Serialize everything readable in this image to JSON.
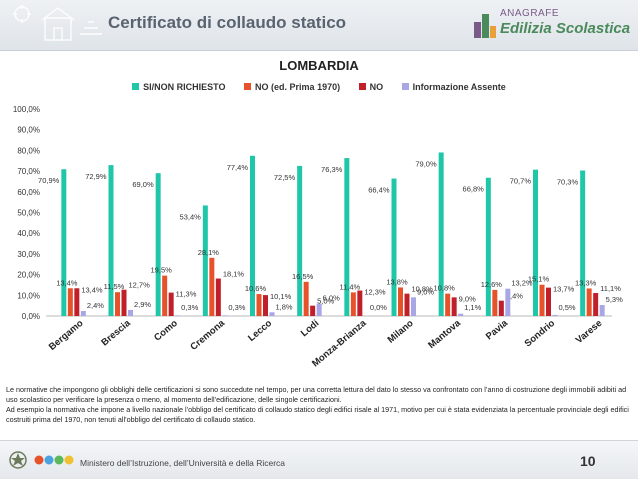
{
  "header": {
    "title": "Certificato di collaudo statico",
    "logo_top": "ANAGRAFE",
    "logo_bottom": "Edilizia Scolastica"
  },
  "chart_data": {
    "type": "bar",
    "title": "LOMBARDIA",
    "categories": [
      "Bergamo",
      "Brescia",
      "Como",
      "Cremona",
      "Lecco",
      "Lodi",
      "Monza-Brianza",
      "Milano",
      "Mantova",
      "Pavia",
      "Sondrio",
      "Varese"
    ],
    "series": [
      {
        "name": "SI/NON RICHIESTO",
        "color": "#1fc7a8",
        "values": [
          70.9,
          72.9,
          69.0,
          53.4,
          77.4,
          72.5,
          76.3,
          66.4,
          79.0,
          66.8,
          70.7,
          70.3
        ]
      },
      {
        "name": "NO (ed. Prima 1970)",
        "color": "#e8522a",
        "values": [
          13.4,
          11.5,
          19.5,
          28.1,
          10.6,
          16.5,
          11.4,
          13.8,
          10.8,
          12.6,
          15.1,
          13.3
        ]
      },
      {
        "name": "NO",
        "color": "#c0202a",
        "values": [
          13.4,
          12.7,
          11.3,
          18.1,
          10.1,
          5.0,
          12.3,
          10.8,
          9.0,
          7.4,
          13.7,
          11.1
        ]
      },
      {
        "name": "Informazione Assente",
        "color": "#a9a6e6",
        "values": [
          2.4,
          2.9,
          0.3,
          0.3,
          1.8,
          6.0,
          0.0,
          9.0,
          1.1,
          13.2,
          0.5,
          5.3
        ]
      }
    ],
    "data_labels": [
      [
        "70,9%",
        "13,4%",
        "13,4%",
        "2,4%"
      ],
      [
        "72,9%",
        "11,5%",
        "12,7%",
        "2,9%"
      ],
      [
        "69,0%",
        "19,5%",
        "11,3%",
        "0,3%"
      ],
      [
        "53,4%",
        "28,1%",
        "18,1%",
        "0,3%"
      ],
      [
        "77,4%",
        "10,6%",
        "10,1%",
        "1,8%"
      ],
      [
        "72,5%",
        "16,5%",
        "5,0%",
        "6,0%"
      ],
      [
        "76,3%",
        "11,4%",
        "12,3%",
        "0,0%"
      ],
      [
        "66,4%",
        "13,8%",
        "10,8%",
        "9,0%"
      ],
      [
        "79,0%",
        "10,8%",
        "9,0%",
        "1,1%"
      ],
      [
        "66,8%",
        "12,6%",
        "7,4%",
        "13,2%"
      ],
      [
        "70,7%",
        "15,1%",
        "13,7%",
        "0,5%"
      ],
      [
        "70,3%",
        "13,3%",
        "11,1%",
        "5,3%"
      ]
    ],
    "y_ticks": [
      "0,0%",
      "10,0%",
      "20,0%",
      "30,0%",
      "40,0%",
      "50,0%",
      "60,0%",
      "70,0%",
      "80,0%",
      "90,0%",
      "100,0%"
    ],
    "ylim": [
      0,
      100
    ],
    "grid": false,
    "legend_position": "top"
  },
  "footnote": {
    "paragraph1": "Le normative che impongono gli obblighi delle certificazioni si sono succedute nel tempo, per una corretta lettura del dato lo stesso va confrontato con l’anno di costruzione degli immobili adibiti ad uso scolastico per verificare la presenza o meno, al momento dell’edificazione, delle singole certificazioni.",
    "paragraph2": "Ad esempio la normativa che impone a livello nazionale l’obbligo del certificato di collaudo statico degli edifici risale al 1971, motivo per cui è stata evidenziata la percentuale provinciale degli edifici costruiti prima del 1970, non tenuti all’obbligo del certificato di collaudo statico."
  },
  "footer": {
    "ministry": "Ministero dell’Istruzione, dell’Università e della Ricerca",
    "page_number": "10",
    "emblem_icon": "republic-emblem-icon",
    "miur_logo": "miur-logo-icon"
  }
}
